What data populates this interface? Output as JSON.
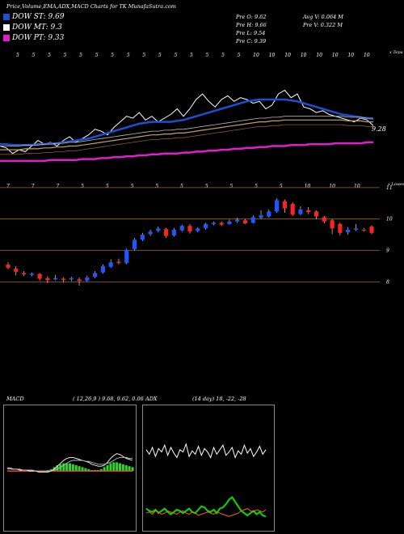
{
  "header": {
    "title": "Price,Volume,EMA,ADX,MACD Charts for TK MunafaSutra.com"
  },
  "legend": [
    {
      "label": "DOW ST: 9.69",
      "color": "#1f4fd1"
    },
    {
      "label": "DOW MT: 9.3",
      "color": "#ffffff"
    },
    {
      "label": "DOW PT: 9.33",
      "color": "#e01ecf"
    }
  ],
  "stats": {
    "prev_o": "Pre   O: 9.62",
    "prev_h": "Pre   H: 9.66",
    "prev_l": "Pre   L: 9.54",
    "prev_c": "Pre   C: 9.39",
    "avg_v": "Avg V: 0.064   M",
    "pre_v": "Pre   V: 0.322   M"
  },
  "chart_data": [
    {
      "type": "line",
      "name": "volume-ema",
      "top_axis_label": "x Tepu",
      "top_tick_labels": [
        "5",
        "5",
        "5",
        "5",
        "5",
        "5",
        "5",
        "5",
        "5",
        "5",
        "5",
        "5",
        "5",
        "5",
        "5",
        "10",
        "10",
        "10",
        "10",
        "10",
        "10",
        "10",
        "10"
      ],
      "last_value_label": "9.28",
      "series": [
        {
          "color": "#ffffff",
          "values": [
            0.3,
            0.28,
            0.22,
            0.26,
            0.24,
            0.3,
            0.36,
            0.32,
            0.34,
            0.3,
            0.36,
            0.4,
            0.34,
            0.38,
            0.42,
            0.48,
            0.46,
            0.42,
            0.5,
            0.56,
            0.62,
            0.6,
            0.66,
            0.58,
            0.62,
            0.56,
            0.6,
            0.64,
            0.7,
            0.62,
            0.7,
            0.8,
            0.86,
            0.78,
            0.72,
            0.8,
            0.84,
            0.78,
            0.82,
            0.8,
            0.76,
            0.78,
            0.7,
            0.74,
            0.86,
            0.9,
            0.82,
            0.86,
            0.72,
            0.7,
            0.66,
            0.68,
            0.64,
            0.62,
            0.6,
            0.58,
            0.56,
            0.6,
            0.58,
            0.52
          ]
        },
        {
          "color": "#1f4fd1",
          "values": [
            0.32,
            0.32,
            0.31,
            0.31,
            0.31,
            0.31,
            0.32,
            0.32,
            0.33,
            0.33,
            0.34,
            0.35,
            0.36,
            0.37,
            0.38,
            0.4,
            0.42,
            0.44,
            0.46,
            0.48,
            0.5,
            0.52,
            0.54,
            0.55,
            0.56,
            0.56,
            0.56,
            0.56,
            0.57,
            0.58,
            0.6,
            0.62,
            0.64,
            0.66,
            0.68,
            0.7,
            0.72,
            0.74,
            0.76,
            0.78,
            0.79,
            0.8,
            0.8,
            0.8,
            0.8,
            0.8,
            0.79,
            0.78,
            0.76,
            0.74,
            0.72,
            0.7,
            0.68,
            0.66,
            0.64,
            0.63,
            0.62,
            0.61,
            0.6,
            0.59
          ]
        },
        {
          "color": "#c8a060",
          "values": [
            0.26,
            0.26,
            0.26,
            0.26,
            0.27,
            0.27,
            0.27,
            0.28,
            0.28,
            0.29,
            0.29,
            0.3,
            0.3,
            0.31,
            0.32,
            0.33,
            0.34,
            0.35,
            0.36,
            0.37,
            0.38,
            0.39,
            0.4,
            0.41,
            0.42,
            0.42,
            0.43,
            0.43,
            0.44,
            0.44,
            0.45,
            0.46,
            0.47,
            0.48,
            0.49,
            0.5,
            0.51,
            0.52,
            0.53,
            0.54,
            0.55,
            0.56,
            0.56,
            0.57,
            0.57,
            0.58,
            0.58,
            0.58,
            0.58,
            0.58,
            0.58,
            0.58,
            0.58,
            0.58,
            0.58,
            0.57,
            0.57,
            0.57,
            0.56,
            0.56
          ]
        },
        {
          "color": "#e01ecf",
          "values": [
            0.14,
            0.14,
            0.14,
            0.14,
            0.14,
            0.14,
            0.14,
            0.14,
            0.15,
            0.15,
            0.15,
            0.15,
            0.15,
            0.16,
            0.16,
            0.16,
            0.17,
            0.17,
            0.18,
            0.18,
            0.19,
            0.19,
            0.2,
            0.2,
            0.21,
            0.21,
            0.22,
            0.22,
            0.22,
            0.23,
            0.23,
            0.24,
            0.24,
            0.25,
            0.25,
            0.26,
            0.26,
            0.27,
            0.27,
            0.28,
            0.28,
            0.29,
            0.29,
            0.3,
            0.3,
            0.3,
            0.31,
            0.31,
            0.31,
            0.32,
            0.32,
            0.32,
            0.32,
            0.33,
            0.33,
            0.33,
            0.33,
            0.33,
            0.34,
            0.34
          ]
        }
      ]
    },
    {
      "type": "candlestick",
      "name": "price",
      "top_axis_label": "x Lowes",
      "top_tick_labels": [
        "7",
        "7",
        "7",
        "5",
        "5",
        "5",
        "5",
        "5",
        "5",
        "5",
        "5",
        "5",
        "10",
        "10",
        "10"
      ],
      "y_tick_labels": [
        "11",
        "10",
        "9",
        "8"
      ],
      "y_ticks": [
        11,
        10,
        9,
        8
      ],
      "ylim": [
        7.7,
        11.1
      ],
      "candles": [
        {
          "o": 8.55,
          "c": 8.45,
          "h": 8.62,
          "l": 8.4
        },
        {
          "o": 8.42,
          "c": 8.32,
          "h": 8.5,
          "l": 8.2
        },
        {
          "o": 8.28,
          "c": 8.24,
          "h": 8.34,
          "l": 8.18
        },
        {
          "o": 8.22,
          "c": 8.26,
          "h": 8.3,
          "l": 8.18
        },
        {
          "o": 8.25,
          "c": 8.1,
          "h": 8.28,
          "l": 8.04
        },
        {
          "o": 8.12,
          "c": 8.05,
          "h": 8.18,
          "l": 7.96
        },
        {
          "o": 8.08,
          "c": 8.12,
          "h": 8.22,
          "l": 8.05
        },
        {
          "o": 8.1,
          "c": 8.06,
          "h": 8.14,
          "l": 7.98
        },
        {
          "o": 8.08,
          "c": 8.12,
          "h": 8.16,
          "l": 8.02
        },
        {
          "o": 8.08,
          "c": 8.03,
          "h": 8.14,
          "l": 7.88
        },
        {
          "o": 8.04,
          "c": 8.14,
          "h": 8.2,
          "l": 8.0
        },
        {
          "o": 8.16,
          "c": 8.28,
          "h": 8.34,
          "l": 8.12
        },
        {
          "o": 8.3,
          "c": 8.5,
          "h": 8.56,
          "l": 8.26
        },
        {
          "o": 8.48,
          "c": 8.62,
          "h": 8.72,
          "l": 8.44
        },
        {
          "o": 8.64,
          "c": 8.6,
          "h": 8.74,
          "l": 8.56
        },
        {
          "o": 8.6,
          "c": 9.02,
          "h": 9.06,
          "l": 8.56
        },
        {
          "o": 9.04,
          "c": 9.34,
          "h": 9.4,
          "l": 9.0
        },
        {
          "o": 9.34,
          "c": 9.5,
          "h": 9.56,
          "l": 9.3
        },
        {
          "o": 9.52,
          "c": 9.6,
          "h": 9.66,
          "l": 9.46
        },
        {
          "o": 9.62,
          "c": 9.7,
          "h": 9.76,
          "l": 9.58
        },
        {
          "o": 9.68,
          "c": 9.46,
          "h": 9.72,
          "l": 9.4
        },
        {
          "o": 9.48,
          "c": 9.66,
          "h": 9.72,
          "l": 9.44
        },
        {
          "o": 9.64,
          "c": 9.78,
          "h": 9.82,
          "l": 9.6
        },
        {
          "o": 9.78,
          "c": 9.6,
          "h": 9.84,
          "l": 9.54
        },
        {
          "o": 9.62,
          "c": 9.7,
          "h": 9.74,
          "l": 9.58
        },
        {
          "o": 9.7,
          "c": 9.84,
          "h": 9.88,
          "l": 9.66
        },
        {
          "o": 9.84,
          "c": 9.88,
          "h": 9.92,
          "l": 9.8
        },
        {
          "o": 9.88,
          "c": 9.82,
          "h": 9.92,
          "l": 9.78
        },
        {
          "o": 9.84,
          "c": 9.92,
          "h": 9.98,
          "l": 9.82
        },
        {
          "o": 9.92,
          "c": 9.98,
          "h": 10.04,
          "l": 9.88
        },
        {
          "o": 9.96,
          "c": 9.86,
          "h": 10.0,
          "l": 9.84
        },
        {
          "o": 9.88,
          "c": 10.06,
          "h": 10.12,
          "l": 9.86
        },
        {
          "o": 10.04,
          "c": 10.12,
          "h": 10.28,
          "l": 10.0
        },
        {
          "o": 10.08,
          "c": 10.24,
          "h": 10.3,
          "l": 10.04
        },
        {
          "o": 10.24,
          "c": 10.6,
          "h": 10.66,
          "l": 10.2
        },
        {
          "o": 10.56,
          "c": 10.34,
          "h": 10.62,
          "l": 10.2
        },
        {
          "o": 10.48,
          "c": 10.14,
          "h": 10.54,
          "l": 10.1
        },
        {
          "o": 10.16,
          "c": 10.3,
          "h": 10.4,
          "l": 10.12
        },
        {
          "o": 10.28,
          "c": 10.22,
          "h": 10.38,
          "l": 10.16
        },
        {
          "o": 10.24,
          "c": 10.08,
          "h": 10.28,
          "l": 10.0
        },
        {
          "o": 10.06,
          "c": 9.92,
          "h": 10.1,
          "l": 9.86
        },
        {
          "o": 9.96,
          "c": 9.7,
          "h": 10.0,
          "l": 9.52
        },
        {
          "o": 9.84,
          "c": 9.56,
          "h": 9.88,
          "l": 9.48
        },
        {
          "o": 9.58,
          "c": 9.66,
          "h": 9.74,
          "l": 9.5
        },
        {
          "o": 9.66,
          "c": 9.7,
          "h": 9.84,
          "l": 9.62
        },
        {
          "o": 9.66,
          "c": 9.64,
          "h": 9.72,
          "l": 9.6
        },
        {
          "o": 9.76,
          "c": 9.56,
          "h": 9.8,
          "l": 9.52
        }
      ]
    },
    {
      "type": "line",
      "name": "macd",
      "label": "MACD",
      "params": "( 12,26,9 ) 9.68, 9.62, 0.06",
      "series": [
        {
          "color": "#ffffff",
          "values": [
            0.52,
            0.52,
            0.51,
            0.51,
            0.5,
            0.5,
            0.5,
            0.49,
            0.49,
            0.49,
            0.48,
            0.48,
            0.48,
            0.48,
            0.49,
            0.51,
            0.54,
            0.57,
            0.6,
            0.62,
            0.63,
            0.63,
            0.62,
            0.61,
            0.6,
            0.59,
            0.58,
            0.56,
            0.55,
            0.54,
            0.54,
            0.55,
            0.58,
            0.62,
            0.65,
            0.67,
            0.66,
            0.64,
            0.62,
            0.61,
            0.6
          ]
        },
        {
          "color": "#bbbbbb",
          "values": [
            0.51,
            0.51,
            0.51,
            0.51,
            0.51,
            0.5,
            0.5,
            0.5,
            0.5,
            0.49,
            0.49,
            0.49,
            0.49,
            0.49,
            0.49,
            0.5,
            0.51,
            0.53,
            0.55,
            0.57,
            0.59,
            0.6,
            0.6,
            0.6,
            0.6,
            0.59,
            0.59,
            0.58,
            0.57,
            0.56,
            0.56,
            0.56,
            0.57,
            0.58,
            0.6,
            0.62,
            0.63,
            0.63,
            0.63,
            0.62,
            0.62
          ]
        },
        {
          "color": "#ff4040",
          "values": [
            0.49,
            0.49,
            0.49,
            0.49,
            0.49,
            0.49,
            0.49,
            0.49,
            0.49,
            0.49,
            0.49,
            0.49,
            0.49,
            0.49,
            0.49,
            0.49,
            0.49,
            0.49,
            0.49,
            0.49,
            0.49,
            0.49,
            0.49,
            0.49,
            0.49,
            0.49,
            0.49,
            0.49,
            0.49,
            0.49,
            0.49,
            0.49,
            0.49,
            0.49,
            0.49,
            0.49,
            0.49,
            0.49,
            0.49,
            0.49,
            0.49
          ]
        }
      ],
      "histogram": [
        0.0,
        0.0,
        0.0,
        0.0,
        0.0,
        0.0,
        0.0,
        0.0,
        0.0,
        0.0,
        0.0,
        0.0,
        0.0,
        0.01,
        0.02,
        0.04,
        0.06,
        0.07,
        0.08,
        0.08,
        0.08,
        0.07,
        0.06,
        0.05,
        0.04,
        0.03,
        0.02,
        0.01,
        0.01,
        0.01,
        0.02,
        0.04,
        0.06,
        0.08,
        0.09,
        0.09,
        0.08,
        0.07,
        0.06,
        0.05,
        0.04
      ]
    },
    {
      "type": "line",
      "name": "adx",
      "label": "ADX",
      "params": "(14 day) 18, -22, -28",
      "series": [
        {
          "color": "#ffffff",
          "values": [
            0.68,
            0.64,
            0.7,
            0.62,
            0.69,
            0.66,
            0.72,
            0.63,
            0.7,
            0.65,
            0.61,
            0.68,
            0.66,
            0.73,
            0.62,
            0.67,
            0.64,
            0.71,
            0.63,
            0.69,
            0.66,
            0.61,
            0.7,
            0.64,
            0.68,
            0.72,
            0.63,
            0.66,
            0.7,
            0.61,
            0.67,
            0.64,
            0.72,
            0.65,
            0.69,
            0.62,
            0.66,
            0.71,
            0.64,
            0.68
          ]
        },
        {
          "color": "#00e000",
          "values": [
            0.16,
            0.14,
            0.13,
            0.15,
            0.12,
            0.14,
            0.16,
            0.13,
            0.11,
            0.13,
            0.15,
            0.14,
            0.12,
            0.14,
            0.16,
            0.13,
            0.12,
            0.15,
            0.18,
            0.17,
            0.14,
            0.13,
            0.15,
            0.12,
            0.16,
            0.17,
            0.2,
            0.24,
            0.26,
            0.22,
            0.18,
            0.14,
            0.12,
            0.1,
            0.12,
            0.14,
            0.11,
            0.13,
            0.1,
            0.09
          ]
        },
        {
          "color": "#ff6600",
          "values": [
            0.12,
            0.13,
            0.11,
            0.14,
            0.13,
            0.11,
            0.12,
            0.14,
            0.13,
            0.12,
            0.11,
            0.13,
            0.14,
            0.12,
            0.11,
            0.13,
            0.12,
            0.1,
            0.11,
            0.12,
            0.13,
            0.12,
            0.11,
            0.13,
            0.12,
            0.11,
            0.1,
            0.09,
            0.1,
            0.11,
            0.12,
            0.14,
            0.15,
            0.16,
            0.14,
            0.13,
            0.15,
            0.14,
            0.13,
            0.15
          ]
        }
      ]
    }
  ]
}
